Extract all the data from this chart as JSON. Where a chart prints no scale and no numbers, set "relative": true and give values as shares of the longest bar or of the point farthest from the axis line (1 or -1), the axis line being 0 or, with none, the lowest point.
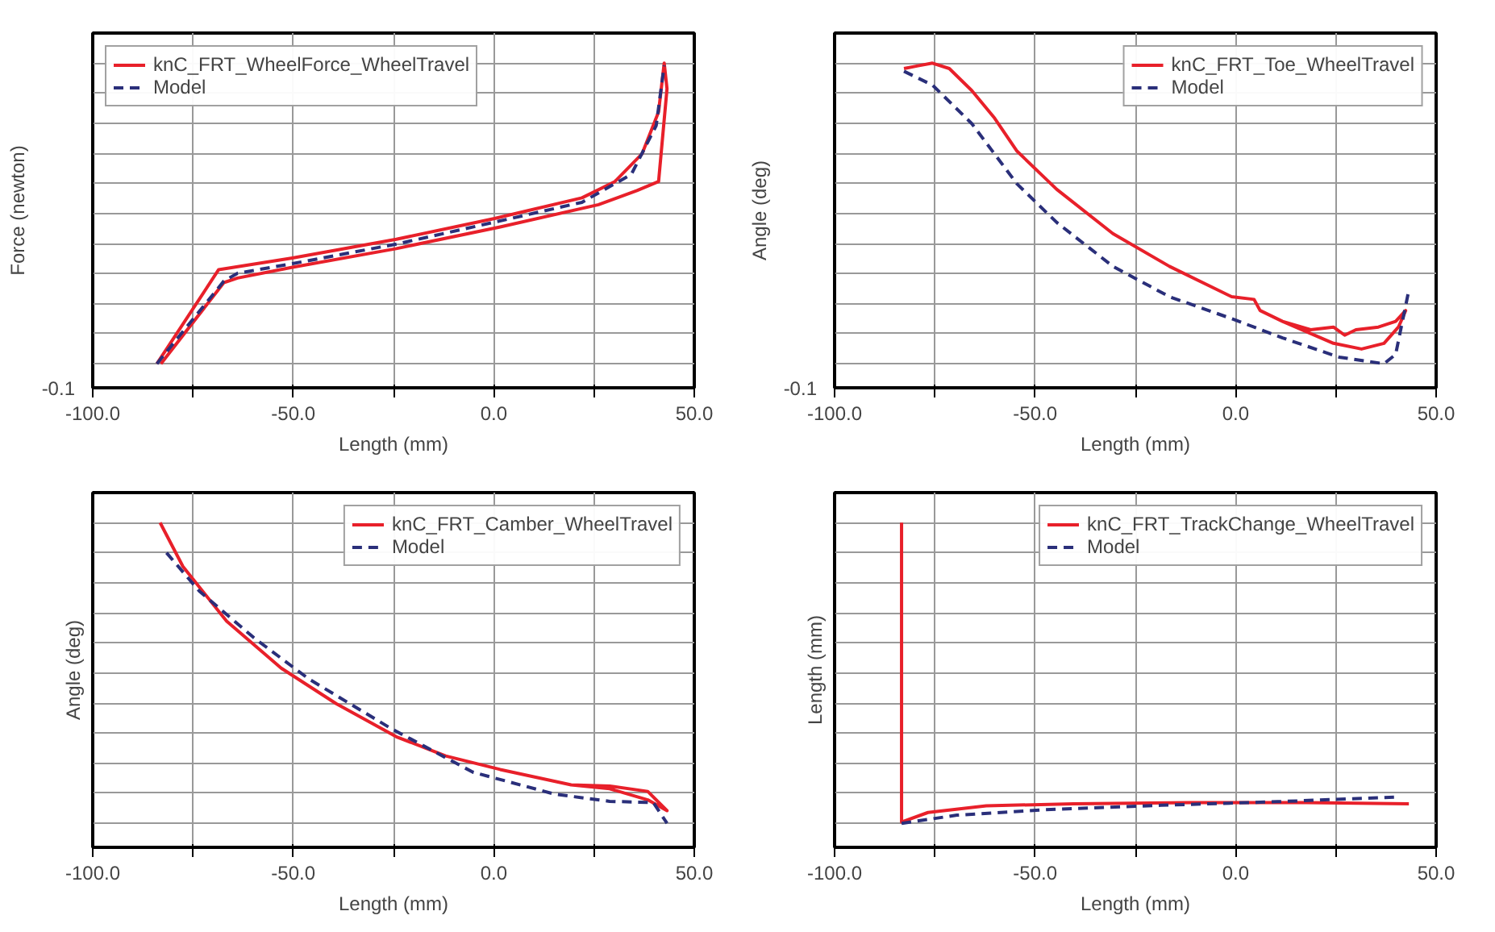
{
  "chart_data": [
    {
      "type": "line",
      "xlabel": "Length (mm)",
      "ylabel": "Force (newton)",
      "relative": true,
      "annotations": [
        "-0.1"
      ],
      "xlim": [
        -100,
        50
      ],
      "xticks": [
        {
          "value": -100,
          "label": "-100.0"
        },
        {
          "value": -75,
          "label": null
        },
        {
          "value": -50,
          "label": "-50.0"
        },
        {
          "value": -25,
          "label": null
        },
        {
          "value": 0,
          "label": "0.0"
        },
        {
          "value": 25,
          "label": null
        },
        {
          "value": 50,
          "label": "50.0"
        }
      ],
      "grid": true,
      "legend": "top left",
      "series": [
        {
          "name": "knC_FRT_WheelForce_WheelTravel",
          "color": "#e8202a",
          "line_style": "solid",
          "x": [
            -84.0,
            -68.6,
            -50.2,
            -24.3,
            0.2,
            22.0,
            30.2,
            37.0,
            41.1,
            42.5,
            43.2,
            41.1,
            35.7,
            26.1,
            1.6,
            -24.3,
            -50.2,
            -63.9,
            -67.3,
            -83.0
          ],
          "values": [
            0,
            0.313,
            0.352,
            0.414,
            0.483,
            0.552,
            0.606,
            0.699,
            0.838,
            1.0,
            0.915,
            0.606,
            0.576,
            0.529,
            0.455,
            0.383,
            0.321,
            0.285,
            0.27,
            0
          ]
        },
        {
          "name": "Model",
          "color": "#2a2f7a",
          "line_style": "dashed",
          "x": [
            -84.0,
            -67.3,
            -63.9,
            -50.2,
            -24.3,
            0.2,
            22.0,
            34.3,
            40.5,
            42.5
          ],
          "values": [
            0,
            0.275,
            0.301,
            0.333,
            0.398,
            0.471,
            0.537,
            0.63,
            0.792,
            0.992
          ]
        }
      ]
    },
    {
      "type": "line",
      "xlabel": "Length (mm)",
      "ylabel": "Angle (deg)",
      "relative": true,
      "annotations": [
        "-0.1"
      ],
      "xlim": [
        -100,
        50
      ],
      "xticks": [
        {
          "value": -100,
          "label": "-100.0"
        },
        {
          "value": -75,
          "label": null
        },
        {
          "value": -50,
          "label": "-50.0"
        },
        {
          "value": -25,
          "label": null
        },
        {
          "value": 0,
          "label": "0.0"
        },
        {
          "value": 25,
          "label": null
        },
        {
          "value": 50,
          "label": "50.0"
        }
      ],
      "grid": true,
      "legend": "top right",
      "series": [
        {
          "name": "knC_FRT_Toe_WheelTravel",
          "color": "#e8202a",
          "line_style": "solid",
          "x": [
            -82.7,
            -79.2,
            -75.6,
            -71.4,
            -65.8,
            -60.1,
            -54.5,
            -44.6,
            -30.6,
            -16.5,
            -1.0,
            4.6,
            6.1,
            11.7,
            18.7,
            24.4,
            27.2,
            30.0,
            35.6,
            39.9,
            42.4,
            40.6,
            37.0,
            31.4,
            24.4,
            11.7
          ],
          "values": [
            0.982,
            0.991,
            1.0,
            0.982,
            0.909,
            0.817,
            0.707,
            0.58,
            0.433,
            0.324,
            0.223,
            0.214,
            0.177,
            0.141,
            0.113,
            0.122,
            0.095,
            0.113,
            0.122,
            0.141,
            0.177,
            0.122,
            0.068,
            0.049,
            0.068,
            0.141
          ]
        },
        {
          "name": "Model",
          "color": "#2a2f7a",
          "line_style": "dashed",
          "x": [
            -82.7,
            -75.6,
            -65.8,
            -54.5,
            -44.6,
            -30.6,
            -16.5,
            -1.0,
            11.7,
            25.8,
            37.0,
            39.9,
            43.0
          ],
          "values": [
            0.973,
            0.927,
            0.799,
            0.598,
            0.47,
            0.324,
            0.223,
            0.15,
            0.086,
            0.022,
            0,
            0.031,
            0.232
          ]
        }
      ]
    },
    {
      "type": "line",
      "xlabel": "Length (mm)",
      "ylabel": "Angle (deg)",
      "relative": true,
      "xlim": [
        -100,
        50
      ],
      "xticks": [
        {
          "value": -100,
          "label": "-100.0"
        },
        {
          "value": -75,
          "label": null
        },
        {
          "value": -50,
          "label": "-50.0"
        },
        {
          "value": -25,
          "label": null
        },
        {
          "value": 0,
          "label": "0.0"
        },
        {
          "value": 25,
          "label": null
        },
        {
          "value": 50,
          "label": "50.0"
        }
      ],
      "grid": true,
      "legend": "top right",
      "series": [
        {
          "name": "knC_FRT_Camber_WheelTravel",
          "color": "#e8202a",
          "line_style": "solid",
          "x": [
            -83.2,
            -77.5,
            -66.6,
            -53.0,
            -39.3,
            -24.3,
            -12.0,
            1.6,
            19.3,
            28.9,
            38.4,
            43.2,
            38.4,
            28.9,
            19.3
          ],
          "values": [
            1.0,
            0.854,
            0.672,
            0.516,
            0.398,
            0.288,
            0.224,
            0.179,
            0.128,
            0.124,
            0.106,
            0.042,
            0.078,
            0.115,
            0.128
          ]
        },
        {
          "name": "Model",
          "color": "#2a2f7a",
          "line_style": "dashed",
          "x": [
            -81.6,
            -73.4,
            -59.8,
            -46.1,
            -25.7,
            -5.2,
            15.2,
            28.9,
            39.8,
            43.2
          ],
          "values": [
            0.9,
            0.772,
            0.617,
            0.48,
            0.316,
            0.17,
            0.097,
            0.073,
            0.069,
            0
          ]
        }
      ]
    },
    {
      "type": "line",
      "xlabel": "Length (mm)",
      "ylabel": "Length (mm)",
      "relative": true,
      "xlim": [
        -100,
        50
      ],
      "xticks": [
        {
          "value": -100,
          "label": "-100.0"
        },
        {
          "value": -75,
          "label": null
        },
        {
          "value": -50,
          "label": "-50.0"
        },
        {
          "value": -25,
          "label": null
        },
        {
          "value": 0,
          "label": "0.0"
        },
        {
          "value": 25,
          "label": null
        },
        {
          "value": 50,
          "label": "50.0"
        }
      ],
      "grid": true,
      "legend": "top right",
      "series": [
        {
          "name": "knC_FRT_TrackChange_WheelTravel",
          "color": "#e8202a",
          "line_style": "solid",
          "x": [
            -83.3,
            -83.3,
            -76.7,
            -62.2,
            -40.4,
            -11.3,
            17.7,
            43.2
          ],
          "values": [
            1.0,
            0.004,
            0.036,
            0.058,
            0.065,
            0.069,
            0.069,
            0.065
          ]
        },
        {
          "name": "Model",
          "color": "#2a2f7a",
          "line_style": "dashed",
          "x": [
            -83.3,
            -69.5,
            -47.7,
            -18.6,
            10.5,
            39.5
          ],
          "values": [
            0,
            0.027,
            0.045,
            0.06,
            0.072,
            0.087
          ]
        }
      ]
    }
  ]
}
